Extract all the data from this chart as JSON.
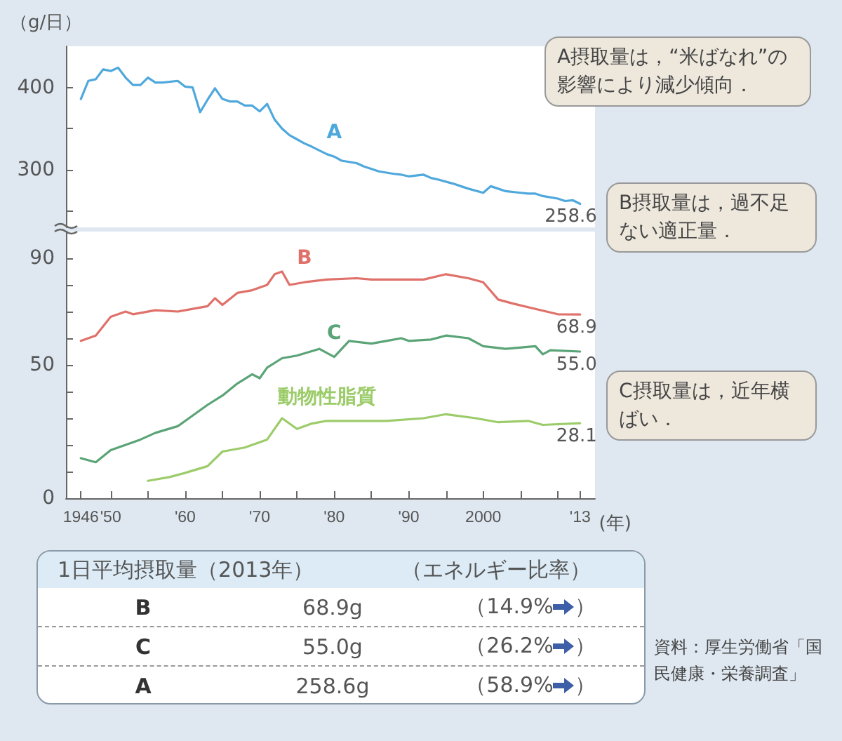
{
  "chart_data": [
    {
      "type": "line",
      "ylabel": "（g/日）",
      "xlim": [
        1944,
        2015
      ],
      "ylim": [
        230,
        450
      ],
      "yticks": [
        {
          "value": 250,
          "label": null
        },
        300,
        {
          "value": 350,
          "label": null
        },
        400
      ],
      "tick_labels": "y",
      "series": [
        {
          "name": "A",
          "color": "#4fa8dc",
          "x": [
            1946,
            1947,
            1948,
            1949,
            1950,
            1951,
            1952,
            1953,
            1954,
            1955,
            1956,
            1957,
            1959,
            1960,
            1961,
            1962,
            1963,
            1964,
            1965,
            1966,
            1967,
            1968,
            1969,
            1970,
            1971,
            1972,
            1973,
            1974,
            1975,
            1976,
            1977,
            1979,
            1980,
            1981,
            1983,
            1984,
            1985,
            1986,
            1988,
            1989,
            1990,
            1992,
            1993,
            1994,
            1996,
            1997,
            1998,
            2000,
            2001,
            2002,
            2003,
            2005,
            2006,
            2007,
            2008,
            2010,
            2011,
            2012,
            2013
          ],
          "values": [
            386,
            408,
            410,
            422,
            420,
            424,
            412,
            403,
            403,
            412,
            406,
            406,
            408,
            401,
            400,
            370,
            385,
            399,
            386,
            383,
            383,
            378,
            378,
            371,
            380,
            361,
            350,
            342,
            337,
            332,
            328,
            319,
            316,
            311,
            308,
            304,
            301,
            298,
            295,
            294,
            292,
            294,
            290,
            288,
            283,
            280,
            277,
            272,
            280,
            277,
            274,
            272,
            271,
            271,
            268,
            265,
            262,
            263,
            258.6
          ],
          "value_labels": [
            null,
            null,
            null,
            null,
            null,
            null,
            null,
            null,
            null,
            null,
            null,
            null,
            null,
            null,
            null,
            null,
            null,
            null,
            null,
            null,
            null,
            null,
            null,
            null,
            null,
            null,
            null,
            null,
            null,
            null,
            null,
            null,
            null,
            null,
            null,
            null,
            null,
            null,
            null,
            null,
            null,
            null,
            null,
            null,
            null,
            null,
            null,
            null,
            null,
            null,
            null,
            null,
            null,
            null,
            null,
            null,
            null,
            null,
            "258.6"
          ]
        }
      ],
      "annotations": [
        "A摂取量は，“米ばなれ”の影響により減少傾向．"
      ]
    },
    {
      "type": "line",
      "xlim": [
        1944,
        2015
      ],
      "ylim": [
        0,
        100
      ],
      "xticks": [
        {
          "value": 1946,
          "label": "1946"
        },
        {
          "value": 1950,
          "label": "'50"
        },
        {
          "value": 1955,
          "label": null
        },
        {
          "value": 1960,
          "label": "'60"
        },
        {
          "value": 1965,
          "label": null
        },
        {
          "value": 1970,
          "label": "'70"
        },
        {
          "value": 1975,
          "label": null
        },
        {
          "value": 1980,
          "label": "'80"
        },
        {
          "value": 1985,
          "label": null
        },
        {
          "value": 1990,
          "label": "'90"
        },
        {
          "value": 1995,
          "label": null
        },
        2000,
        {
          "value": 2005,
          "label": null
        },
        {
          "value": 2010,
          "label": null
        },
        {
          "value": 2013,
          "label": "'13"
        }
      ],
      "xlabel": "(年)",
      "yticks": [
        0,
        {
          "value": 10,
          "label": null
        },
        {
          "value": 20,
          "label": null
        },
        {
          "value": 30,
          "label": null
        },
        {
          "value": 40,
          "label": null
        },
        50,
        {
          "value": 60,
          "label": null
        },
        {
          "value": 70,
          "label": null
        },
        {
          "value": 80,
          "label": null
        },
        90
      ],
      "series": [
        {
          "name": "B",
          "color": "#e0716a",
          "x": [
            1946,
            1948,
            1950,
            1952,
            1953,
            1956,
            1959,
            1963,
            1964,
            1965,
            1967,
            1969,
            1971,
            1972,
            1973,
            1974,
            1976,
            1979,
            1983,
            1985,
            1989,
            1992,
            1995,
            1998,
            2000,
            2002,
            2004,
            2007,
            2010,
            2013
          ],
          "values": [
            59,
            61,
            68,
            70,
            69,
            70.5,
            70,
            72,
            75,
            72.5,
            77,
            78,
            80,
            84,
            85,
            80,
            81,
            82,
            82.5,
            82,
            82,
            82,
            84,
            82.5,
            81,
            74.5,
            73,
            71,
            69,
            68.9
          ],
          "value_labels": [
            null,
            null,
            null,
            null,
            null,
            null,
            null,
            null,
            null,
            null,
            null,
            null,
            null,
            null,
            null,
            null,
            null,
            null,
            null,
            null,
            null,
            null,
            null,
            null,
            null,
            null,
            null,
            null,
            null,
            "68.9"
          ]
        },
        {
          "name": "C",
          "color": "#5aa477",
          "x": [
            1946,
            1948,
            1950,
            1952,
            1954,
            1956,
            1959,
            1961,
            1963,
            1965,
            1967,
            1969,
            1970,
            1971,
            1973,
            1975,
            1978,
            1980,
            1982,
            1985,
            1987,
            1989,
            1990,
            1993,
            1995,
            1998,
            2000,
            2003,
            2007,
            2008,
            2009,
            2013
          ],
          "values": [
            15,
            13.5,
            18,
            20,
            22,
            24.5,
            27,
            31,
            35,
            38.5,
            43,
            46.5,
            45,
            49,
            52.5,
            53.5,
            56,
            53,
            59,
            58,
            59,
            60,
            59,
            59.5,
            61,
            60,
            57,
            56,
            57,
            54,
            55.5,
            55.0
          ],
          "value_labels": [
            null,
            null,
            null,
            null,
            null,
            null,
            null,
            null,
            null,
            null,
            null,
            null,
            null,
            null,
            null,
            null,
            null,
            null,
            null,
            null,
            null,
            null,
            null,
            null,
            null,
            null,
            null,
            null,
            null,
            null,
            null,
            "55.0"
          ]
        },
        {
          "name": "動物性脂質",
          "color": "#9ccc6a",
          "x": [
            1955,
            1958,
            1960,
            1963,
            1965,
            1968,
            1971,
            1972,
            1973,
            1975,
            1977,
            1979,
            1983,
            1987,
            1992,
            1995,
            1999,
            2002,
            2006,
            2008,
            2013
          ],
          "values": [
            6.5,
            8,
            9.5,
            12,
            17.5,
            19,
            22,
            26,
            30,
            26,
            28,
            29,
            29,
            29,
            30,
            31.5,
            30,
            28.5,
            29,
            27.5,
            28.1
          ],
          "value_labels": [
            null,
            null,
            null,
            null,
            null,
            null,
            null,
            null,
            null,
            null,
            null,
            null,
            null,
            null,
            null,
            null,
            null,
            null,
            null,
            null,
            "28.1"
          ]
        }
      ],
      "annotations": [
        "B摂取量は，過不足ない適正量．",
        "C摂取量は，近年横ばい．",
        "資料：厚生労働省「国民健康・栄養調査」"
      ]
    },
    {
      "type": "other",
      "title": "1日平均摂取量（2013年）",
      "subtitle": "（エネルギー比率）",
      "categories": [
        "B",
        "C",
        "A"
      ],
      "value_labels": [
        "68.9g",
        "55.0g",
        "258.6g"
      ],
      "annotations": [
        "（14.9%）",
        "（26.2%）",
        "（58.9%）"
      ]
    }
  ]
}
